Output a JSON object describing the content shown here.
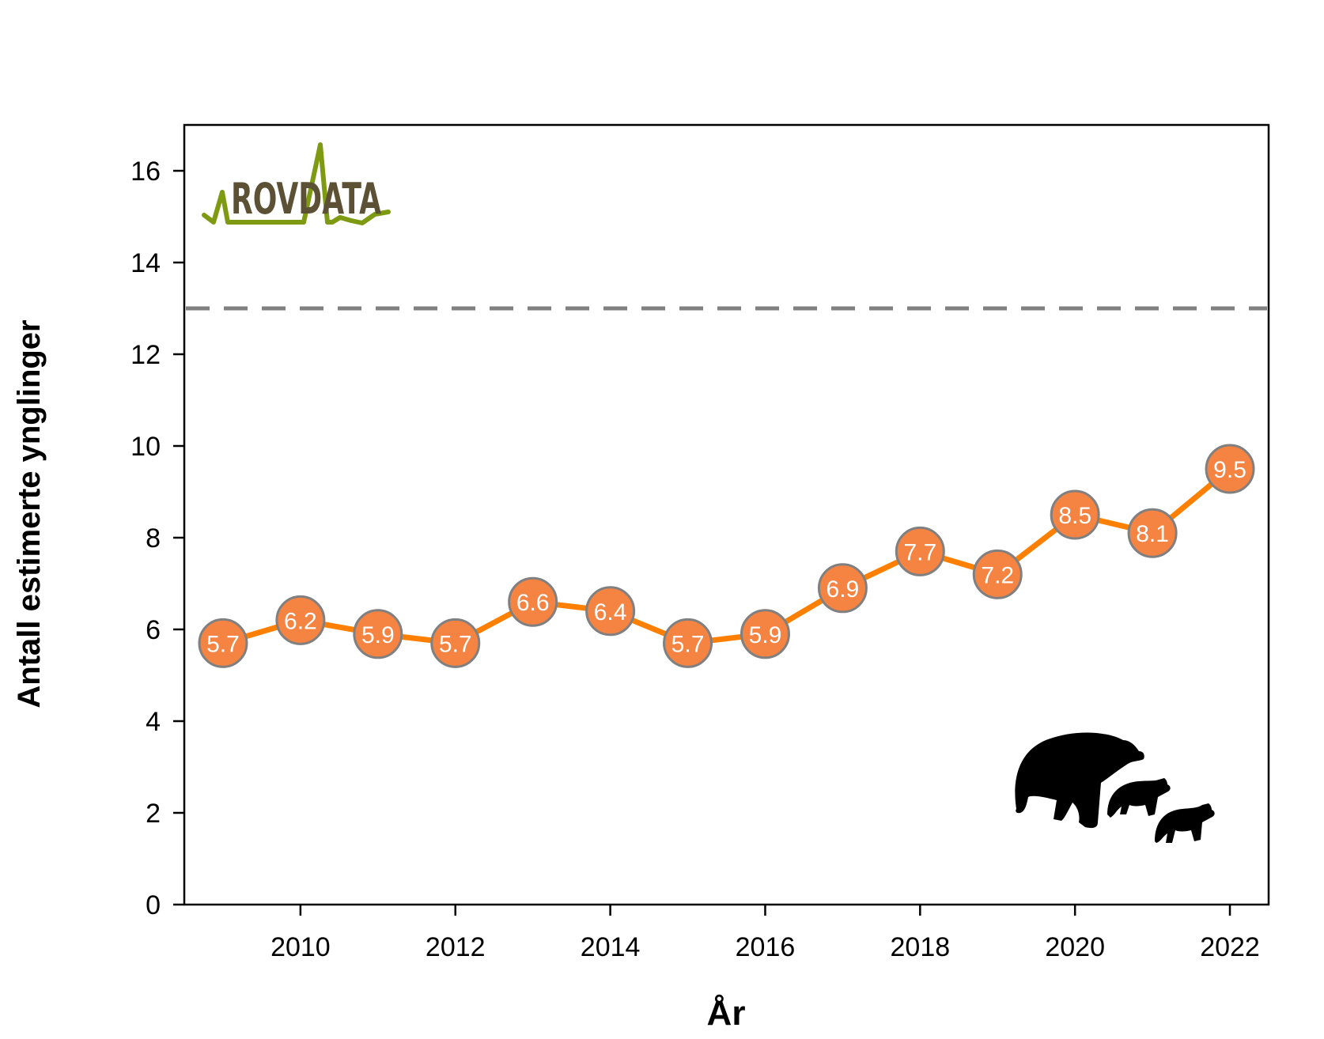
{
  "colors": {
    "line": "#ff8000",
    "marker_fill": "#f58342",
    "marker_stroke": "#808080",
    "reference": "#808080",
    "logo_text": "#5c5035",
    "logo_line": "#7d9a12"
  },
  "logo": {
    "text": "ROVDATA"
  },
  "chart_data": {
    "type": "line",
    "title": "",
    "xlabel": "År",
    "ylabel": "Antall estimerte ynglinger",
    "xlim": [
      2008.5,
      2022.5
    ],
    "ylim": [
      0,
      17
    ],
    "x_ticks": [
      2010,
      2012,
      2014,
      2016,
      2018,
      2020,
      2022
    ],
    "y_ticks": [
      0,
      2,
      4,
      6,
      8,
      10,
      12,
      14,
      16
    ],
    "reference_line": {
      "y": 13,
      "style": "dashed"
    },
    "grid": false,
    "series": [
      {
        "name": "Antall estimerte ynglinger",
        "x": [
          2009,
          2010,
          2011,
          2012,
          2013,
          2014,
          2015,
          2016,
          2017,
          2018,
          2019,
          2020,
          2021,
          2022
        ],
        "values": [
          5.7,
          6.2,
          5.9,
          5.7,
          6.6,
          6.4,
          5.7,
          5.9,
          6.9,
          7.7,
          7.2,
          8.5,
          8.1,
          9.5
        ]
      }
    ],
    "data_labels": [
      "5.7",
      "6.2",
      "5.9",
      "5.7",
      "6.6",
      "6.4",
      "5.7",
      "5.9",
      "6.9",
      "7.7",
      "7.2",
      "8.5",
      "8.1",
      "9.5"
    ],
    "icon": "bear-with-cubs-icon"
  }
}
